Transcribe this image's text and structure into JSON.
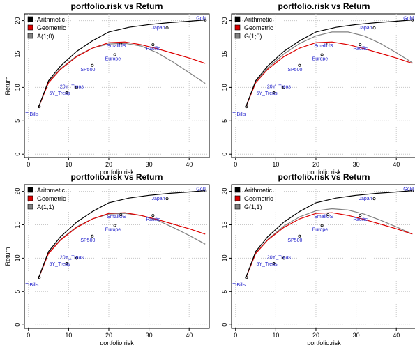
{
  "chart_data": [
    {
      "type": "line",
      "title": "portfolio.risk vs Return",
      "xlabel": "portfolio.risk",
      "ylabel": "Return",
      "xlim": [
        -1,
        45
      ],
      "ylim": [
        -0.5,
        21
      ],
      "xticks": [
        0,
        10,
        20,
        30,
        40
      ],
      "yticks": [
        0,
        5,
        10,
        15,
        20
      ],
      "grid": true,
      "legend_position": "top-left",
      "series": [
        {
          "name": "Arithmetic",
          "color": "#000000",
          "x": [
            2.5,
            5,
            8,
            12,
            16,
            20,
            25,
            30,
            35,
            40,
            44
          ],
          "y": [
            7.0,
            11.0,
            13.2,
            15.4,
            17.0,
            18.3,
            19.0,
            19.4,
            19.7,
            19.9,
            20.1
          ]
        },
        {
          "name": "Geometric",
          "color": "#dd0000",
          "x": [
            2.5,
            5,
            8,
            12,
            16,
            20,
            24,
            28,
            32,
            36,
            40,
            44
          ],
          "y": [
            7.0,
            10.7,
            12.7,
            14.6,
            15.9,
            16.7,
            16.8,
            16.4,
            15.8,
            15.1,
            14.4,
            13.6
          ]
        },
        {
          "name": "A(1;0)",
          "color": "#808080",
          "x": [
            2.5,
            5,
            8,
            12,
            16,
            20,
            24,
            28,
            32,
            36,
            40,
            44
          ],
          "y": [
            7.0,
            10.9,
            12.8,
            14.7,
            15.9,
            16.5,
            16.6,
            16.2,
            15.2,
            13.8,
            12.2,
            10.6
          ]
        }
      ],
      "points": [
        {
          "label": "T-Bills",
          "x": 2.7,
          "y": 7.1
        },
        {
          "label": "5Y_Treas",
          "x": 9.5,
          "y": 9.2
        },
        {
          "label": "20Y_Treas",
          "x": 12.0,
          "y": 10.0
        },
        {
          "label": "SP500",
          "x": 15.9,
          "y": 13.3
        },
        {
          "label": "Europe",
          "x": 21.5,
          "y": 14.9
        },
        {
          "label": "SmallUS",
          "x": 23.0,
          "y": 16.5
        },
        {
          "label": "Pacific",
          "x": 31.0,
          "y": 16.4
        },
        {
          "label": "Japan",
          "x": 34.5,
          "y": 18.9
        },
        {
          "label": "Gold",
          "x": 44.0,
          "y": 20.1
        }
      ]
    },
    {
      "type": "line",
      "title": "portfolio.risk vs Return",
      "xlabel": "portfolio.risk",
      "ylabel": "",
      "xlim": [
        -1,
        45
      ],
      "ylim": [
        -0.5,
        21
      ],
      "xticks": [
        0,
        10,
        20,
        30,
        40
      ],
      "yticks": [
        0,
        5,
        10,
        15,
        20
      ],
      "grid": true,
      "legend_position": "top-left",
      "series": [
        {
          "name": "Arithmetic",
          "color": "#000000",
          "x": [
            2.5,
            5,
            8,
            12,
            16,
            20,
            25,
            30,
            35,
            40,
            44
          ],
          "y": [
            7.0,
            11.0,
            13.2,
            15.4,
            17.0,
            18.3,
            19.0,
            19.4,
            19.7,
            19.9,
            20.1
          ]
        },
        {
          "name": "Geometric",
          "color": "#dd0000",
          "x": [
            2.5,
            5,
            8,
            12,
            16,
            20,
            24,
            28,
            32,
            36,
            40,
            44
          ],
          "y": [
            7.0,
            10.7,
            12.7,
            14.6,
            15.9,
            16.7,
            16.8,
            16.4,
            15.8,
            15.1,
            14.4,
            13.6
          ]
        },
        {
          "name": "G(1;0)",
          "color": "#808080",
          "x": [
            2.5,
            5,
            8,
            12,
            16,
            20,
            24,
            28,
            32,
            36,
            40,
            44
          ],
          "y": [
            7.0,
            10.9,
            12.9,
            15.0,
            16.6,
            17.7,
            18.3,
            18.3,
            17.7,
            16.6,
            15.2,
            13.7
          ]
        }
      ],
      "points": [
        {
          "label": "T-Bills",
          "x": 2.7,
          "y": 7.1
        },
        {
          "label": "5Y_Treas",
          "x": 9.5,
          "y": 9.2
        },
        {
          "label": "20Y_Treas",
          "x": 12.0,
          "y": 10.0
        },
        {
          "label": "SP500",
          "x": 15.9,
          "y": 13.3
        },
        {
          "label": "Europe",
          "x": 21.5,
          "y": 14.9
        },
        {
          "label": "SmallUS",
          "x": 23.0,
          "y": 16.5
        },
        {
          "label": "Pacific",
          "x": 31.0,
          "y": 16.4
        },
        {
          "label": "Japan",
          "x": 34.5,
          "y": 18.9
        },
        {
          "label": "Gold",
          "x": 44.0,
          "y": 20.1
        }
      ]
    },
    {
      "type": "line",
      "title": "portfolio.risk vs Return",
      "xlabel": "portfolio.risk",
      "ylabel": "Return",
      "xlim": [
        -1,
        45
      ],
      "ylim": [
        -0.5,
        21
      ],
      "xticks": [
        0,
        10,
        20,
        30,
        40
      ],
      "yticks": [
        0,
        5,
        10,
        15,
        20
      ],
      "grid": true,
      "legend_position": "top-left",
      "series": [
        {
          "name": "Arithmetic",
          "color": "#000000",
          "x": [
            2.5,
            5,
            8,
            12,
            16,
            20,
            25,
            30,
            35,
            40,
            44
          ],
          "y": [
            7.0,
            11.0,
            13.2,
            15.4,
            17.0,
            18.3,
            19.0,
            19.4,
            19.7,
            19.9,
            20.1
          ]
        },
        {
          "name": "Geometric",
          "color": "#dd0000",
          "x": [
            2.5,
            5,
            8,
            12,
            16,
            20,
            24,
            28,
            32,
            36,
            40,
            44
          ],
          "y": [
            7.0,
            10.7,
            12.7,
            14.6,
            15.9,
            16.7,
            16.8,
            16.4,
            15.8,
            15.1,
            14.4,
            13.6
          ]
        },
        {
          "name": "A(1;1)",
          "color": "#808080",
          "x": [
            2.5,
            5,
            8,
            12,
            16,
            20,
            24,
            28,
            32,
            36,
            40,
            44
          ],
          "y": [
            7.0,
            10.8,
            12.8,
            14.7,
            15.9,
            16.6,
            16.7,
            16.4,
            15.7,
            14.6,
            13.4,
            12.1
          ]
        }
      ],
      "points": [
        {
          "label": "T-Bills",
          "x": 2.7,
          "y": 7.1
        },
        {
          "label": "5Y_Treas",
          "x": 9.5,
          "y": 9.2
        },
        {
          "label": "20Y_Treas",
          "x": 12.0,
          "y": 10.0
        },
        {
          "label": "SP500",
          "x": 15.9,
          "y": 13.3
        },
        {
          "label": "Europe",
          "x": 21.5,
          "y": 14.9
        },
        {
          "label": "SmallUS",
          "x": 23.0,
          "y": 16.5
        },
        {
          "label": "Pacific",
          "x": 31.0,
          "y": 16.4
        },
        {
          "label": "Japan",
          "x": 34.5,
          "y": 18.9
        },
        {
          "label": "Gold",
          "x": 44.0,
          "y": 20.1
        }
      ]
    },
    {
      "type": "line",
      "title": "portfolio.risk vs Return",
      "xlabel": "portfolio.risk",
      "ylabel": "",
      "xlim": [
        -1,
        45
      ],
      "ylim": [
        -0.5,
        21
      ],
      "xticks": [
        0,
        10,
        20,
        30,
        40
      ],
      "yticks": [
        0,
        5,
        10,
        15,
        20
      ],
      "grid": true,
      "legend_position": "top-left",
      "series": [
        {
          "name": "Arithmetic",
          "color": "#000000",
          "x": [
            2.5,
            5,
            8,
            12,
            16,
            20,
            25,
            30,
            35,
            40,
            44
          ],
          "y": [
            7.0,
            11.0,
            13.2,
            15.4,
            17.0,
            18.3,
            19.0,
            19.4,
            19.7,
            19.9,
            20.1
          ]
        },
        {
          "name": "Geometric",
          "color": "#dd0000",
          "x": [
            2.5,
            5,
            8,
            12,
            16,
            20,
            24,
            28,
            32,
            36,
            40,
            44
          ],
          "y": [
            7.0,
            10.7,
            12.7,
            14.6,
            15.9,
            16.7,
            16.8,
            16.4,
            15.8,
            15.1,
            14.4,
            13.6
          ]
        },
        {
          "name": "G(1;1)",
          "color": "#808080",
          "x": [
            2.5,
            5,
            8,
            12,
            16,
            20,
            24,
            28,
            32,
            36,
            40,
            44
          ],
          "y": [
            7.0,
            10.8,
            12.8,
            14.8,
            16.2,
            17.1,
            17.4,
            17.2,
            16.6,
            15.7,
            14.7,
            13.6
          ]
        }
      ],
      "points": [
        {
          "label": "T-Bills",
          "x": 2.7,
          "y": 7.1
        },
        {
          "label": "5Y_Treas",
          "x": 9.5,
          "y": 9.2
        },
        {
          "label": "20Y_Treas",
          "x": 12.0,
          "y": 10.0
        },
        {
          "label": "SP500",
          "x": 15.9,
          "y": 13.3
        },
        {
          "label": "Europe",
          "x": 21.5,
          "y": 14.9
        },
        {
          "label": "SmallUS",
          "x": 23.0,
          "y": 16.5
        },
        {
          "label": "Pacific",
          "x": 31.0,
          "y": 16.4
        },
        {
          "label": "Japan",
          "x": 34.5,
          "y": 18.9
        },
        {
          "label": "Gold",
          "x": 44.0,
          "y": 20.1
        }
      ]
    }
  ]
}
